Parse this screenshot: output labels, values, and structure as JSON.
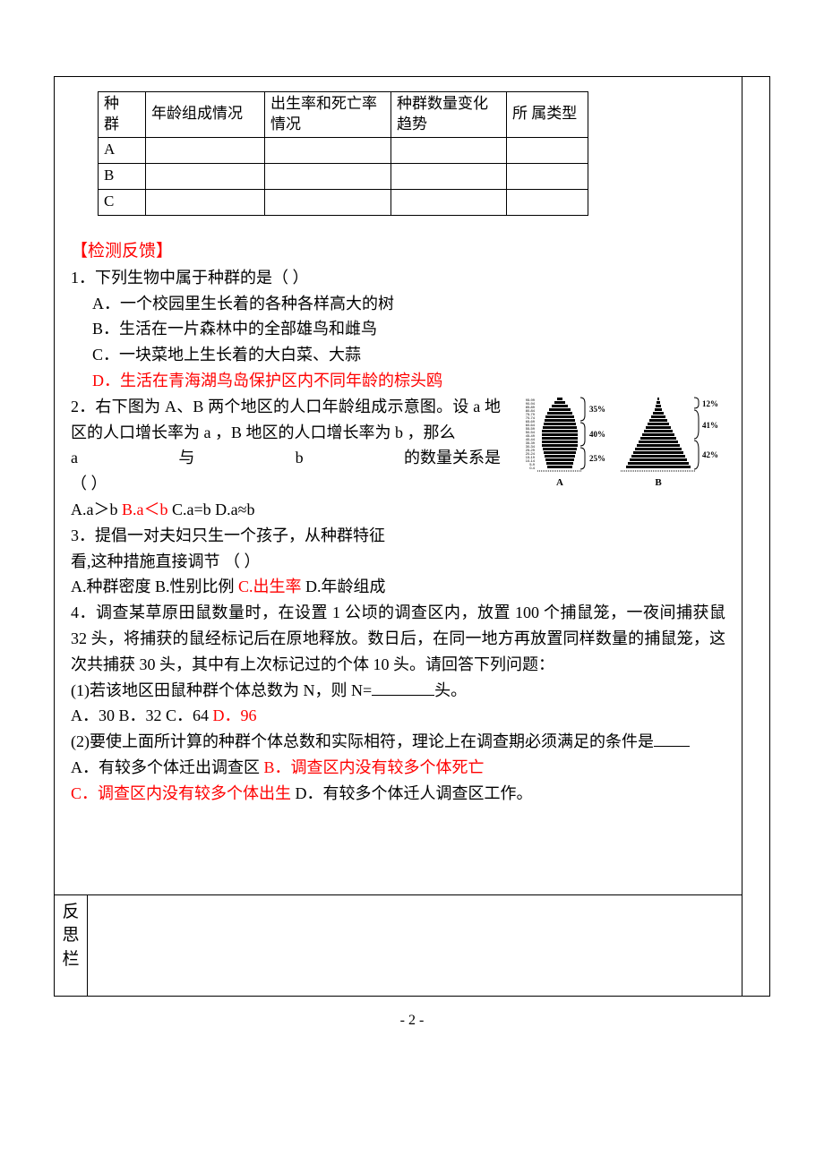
{
  "table": {
    "headers": {
      "col0a": "种",
      "col0b": "群",
      "col1": "年龄组成情况",
      "col2": "出生率和死亡率情况",
      "col3": "种群数量变化趋势",
      "col4": "所  属类型"
    },
    "rows": [
      "A",
      "B",
      "C"
    ]
  },
  "section_head": "【检测反馈】",
  "q1": {
    "stem": "1．下列生物中属于种群的是（  ）",
    "a": "A．一个校园里生长着的各种各样高大的树",
    "b": "B．生活在一片森林中的全部雄鸟和雌鸟",
    "c": "C．一块菜地上生长着的大白菜、大蒜",
    "d": "D．生活在青海湖鸟岛保护区内不同年龄的棕头鸥"
  },
  "q2": {
    "stem": "2．右下图为 A、B 两个地区的人口年龄组成示意图。设 a 地区的人口增长率为 a ，B 地区的人口增长率为 b ，那么",
    "line2_left": "a",
    "line2_mid1": "与",
    "line2_mid2": "b",
    "line2_right": "的数量关系是",
    "line3": "（      ）",
    "opts_pre": " A.a＞b  ",
    "opt_b": "B.a＜b",
    "opts_post": "  C.a=b  D.a≈b"
  },
  "q3": {
    "l1": "3．提倡一对夫妇只生一个孩子，从种群特征",
    "l2": "看,这种措施直接调节        （   ）",
    "opts_pre": " A.种群密度    B.性别比例    ",
    "opt_c": "C.出生率",
    "opts_post": "    D.年龄组成"
  },
  "q4": {
    "stem": "4．调查某草原田鼠数量时，在设置 1 公顷的调查区内，放置 100 个捕鼠笼，一夜间捕获鼠 32 头，将捕获的鼠经标记后在原地释放。数日后，在同一地方再放置同样数量的捕鼠笼，这次共捕获 30 头，其中有上次标记过的个体 10 头。请回答下列问题：",
    "p1_pre": "(1)若该地区田鼠种群个体总数为 N，则 N=",
    "p1_post": "头。",
    "p1_opts_pre": " A．30     B．32      C．64       ",
    "p1_d": "D．96",
    "p2": "(2)要使上面所计算的种群个体总数和实际相符，理论上在调查期必须满足的条件是",
    "p2a_pre": " A．有较多个体迁出调查区 ",
    "p2a_b": "B．调查区内没有较多个体死亡",
    "p2b_c": " C．调查区内没有较多个体出生",
    "p2b_post": "  D．有较多个体迁人调查区工作。"
  },
  "reflect_label": "反思栏",
  "pyramid": {
    "A": {
      "pcts": [
        "35%",
        "40%",
        "25%"
      ],
      "label": "A"
    },
    "B": {
      "pcts": [
        "12%",
        "41%",
        "42%"
      ],
      "label": "B"
    },
    "age_labels": [
      "95-99",
      "90-94",
      "85-89",
      "80-84",
      "75-79",
      "70-74",
      "65-69",
      "60-64",
      "55-59",
      "50-54",
      "45-49",
      "40-44",
      "35-39",
      "30-34",
      "25-29",
      "20-24",
      "15-19",
      "10-14",
      "5-9",
      "0-4"
    ],
    "colors": {
      "bar": "#000000",
      "label": "#000000"
    }
  },
  "page_num": "- 2 -"
}
